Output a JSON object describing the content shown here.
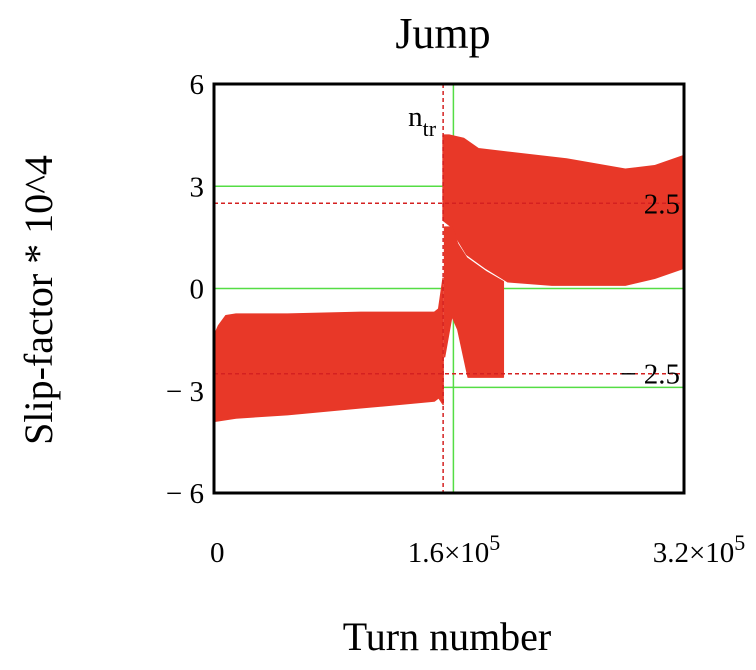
{
  "chart_data": {
    "type": "area",
    "title": "Jump",
    "xlabel": "Turn number",
    "ylabel": "Slip-factor * 10^4",
    "xlim": [
      0,
      320000
    ],
    "ylim": [
      -6,
      6
    ],
    "x_ticks": [
      {
        "value": 0,
        "mantissa": "0",
        "exponent": ""
      },
      {
        "value": 160000,
        "mantissa": "1.6×10",
        "exponent": "5"
      },
      {
        "value": 320000,
        "mantissa": "3.2×10",
        "exponent": "5"
      }
    ],
    "y_ticks": [
      {
        "value": 6,
        "label": "6"
      },
      {
        "value": 3,
        "label": "3"
      },
      {
        "value": 0,
        "label": "0"
      },
      {
        "value": -3,
        "label": "− 3"
      },
      {
        "value": -6,
        "label": "− 6"
      }
    ],
    "grid": {
      "y": [
        3,
        0,
        -2.9
      ],
      "x": [
        163000
      ],
      "color": "#55dd44"
    },
    "reference_lines": [
      {
        "orientation": "horizontal",
        "value": 2.5,
        "label": "2.5",
        "color": "#d42020",
        "style": "dashed"
      },
      {
        "orientation": "horizontal",
        "value": -2.5,
        "label": "− 2.5",
        "color": "#d42020",
        "style": "dashed"
      },
      {
        "orientation": "vertical",
        "value": 156000,
        "label": "n",
        "subscript": "tr",
        "color": "#d42020",
        "style": "dashed"
      }
    ],
    "series": [
      {
        "color": "#e83828",
        "segments": [
          {
            "upper": [
              [
                0,
                -1.4
              ],
              [
                3000,
                -1.1
              ],
              [
                8000,
                -0.8
              ],
              [
                15000,
                -0.75
              ],
              [
                50000,
                -0.75
              ],
              [
                100000,
                -0.7
              ],
              [
                150000,
                -0.7
              ],
              [
                153000,
                -0.6
              ],
              [
                156000,
                0.3
              ]
            ],
            "lower": [
              [
                0,
                -3.9
              ],
              [
                15000,
                -3.8
              ],
              [
                50000,
                -3.7
              ],
              [
                100000,
                -3.5
              ],
              [
                150000,
                -3.3
              ],
              [
                153000,
                -3.2
              ],
              [
                156000,
                -3.4
              ]
            ]
          },
          {
            "upper": [
              [
                156000,
                4.5
              ],
              [
                160000,
                4.5
              ],
              [
                170000,
                4.4
              ],
              [
                180000,
                4.1
              ],
              [
                200000,
                4.0
              ],
              [
                240000,
                3.8
              ],
              [
                280000,
                3.5
              ],
              [
                300000,
                3.6
              ],
              [
                320000,
                3.9
              ]
            ],
            "lower": [
              [
                156000,
                2.0
              ],
              [
                162000,
                1.8
              ],
              [
                165000,
                1.5
              ],
              [
                172000,
                1.0
              ],
              [
                185000,
                0.6
              ],
              [
                200000,
                0.2
              ],
              [
                230000,
                0.1
              ],
              [
                280000,
                0.1
              ],
              [
                300000,
                0.3
              ],
              [
                320000,
                0.6
              ]
            ]
          },
          {
            "upper": [
              [
                157000,
                1.8
              ],
              [
                162000,
                1.8
              ],
              [
                166000,
                1.3
              ],
              [
                172000,
                0.9
              ],
              [
                185000,
                0.5
              ],
              [
                197000,
                0.2
              ]
            ],
            "lower": [
              [
                157000,
                -2.0
              ],
              [
                162000,
                -0.8
              ],
              [
                166000,
                -1.2
              ],
              [
                170000,
                -2.0
              ],
              [
                173000,
                -2.6
              ],
              [
                187000,
                -2.6
              ],
              [
                197000,
                -2.6
              ]
            ]
          }
        ]
      }
    ]
  }
}
